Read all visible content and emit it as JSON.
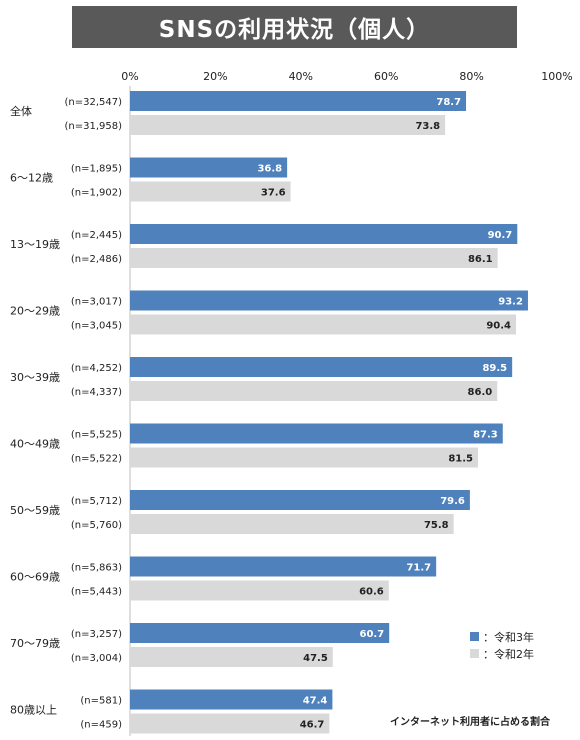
{
  "title": "SNSの利用状況（個人）",
  "note": "インターネット利用者に占める割合",
  "colors": {
    "reiwa3": "#4F81BD",
    "reiwa2": "#D9D9D9",
    "title_bg": "#595959"
  },
  "legend": [
    {
      "label": "：令和3年",
      "color": "#4F81BD"
    },
    {
      "label": "：令和2年",
      "color": "#D9D9D9"
    }
  ],
  "chart_data": {
    "type": "bar",
    "orientation": "horizontal",
    "xlim": [
      0,
      100
    ],
    "x_ticks": [
      "0%",
      "20%",
      "40%",
      "60%",
      "80%",
      "100%"
    ],
    "grid": false,
    "legend_position": "bottom-right",
    "categories": [
      "全体",
      "6～12歳",
      "13～19歳",
      "20～29歳",
      "30～39歳",
      "40～49歳",
      "50～59歳",
      "60～69歳",
      "70～79歳",
      "80歳以上"
    ],
    "series": [
      {
        "name": "令和3年",
        "values": [
          78.7,
          36.8,
          90.7,
          93.2,
          89.5,
          87.3,
          79.6,
          71.7,
          60.7,
          47.4
        ],
        "labels": [
          "78.7",
          "36.8",
          "90.7",
          "93.2",
          "89.5",
          "87.3",
          "79.6",
          "71.7",
          "60.7",
          "47.4"
        ],
        "n": [
          "(n=32,547)",
          "(n=1,895)",
          "(n=2,445)",
          "(n=3,017)",
          "(n=4,252)",
          "(n=5,525)",
          "(n=5,712)",
          "(n=5,863)",
          "(n=3,257)",
          "(n=581)"
        ]
      },
      {
        "name": "令和2年",
        "values": [
          73.8,
          37.6,
          86.1,
          90.4,
          86.0,
          81.5,
          75.8,
          60.6,
          47.5,
          46.7
        ],
        "labels": [
          "73.8",
          "37.6",
          "86.1",
          "90.4",
          "86.0",
          "81.5",
          "75.8",
          "60.6",
          "47.5",
          "46.7"
        ],
        "n": [
          "(n=31,958)",
          "(n=1,902)",
          "(n=2,486)",
          "(n=3,045)",
          "(n=4,337)",
          "(n=5,522)",
          "(n=5,760)",
          "(n=5,443)",
          "(n=3,004)",
          "(n=459)"
        ]
      }
    ]
  }
}
